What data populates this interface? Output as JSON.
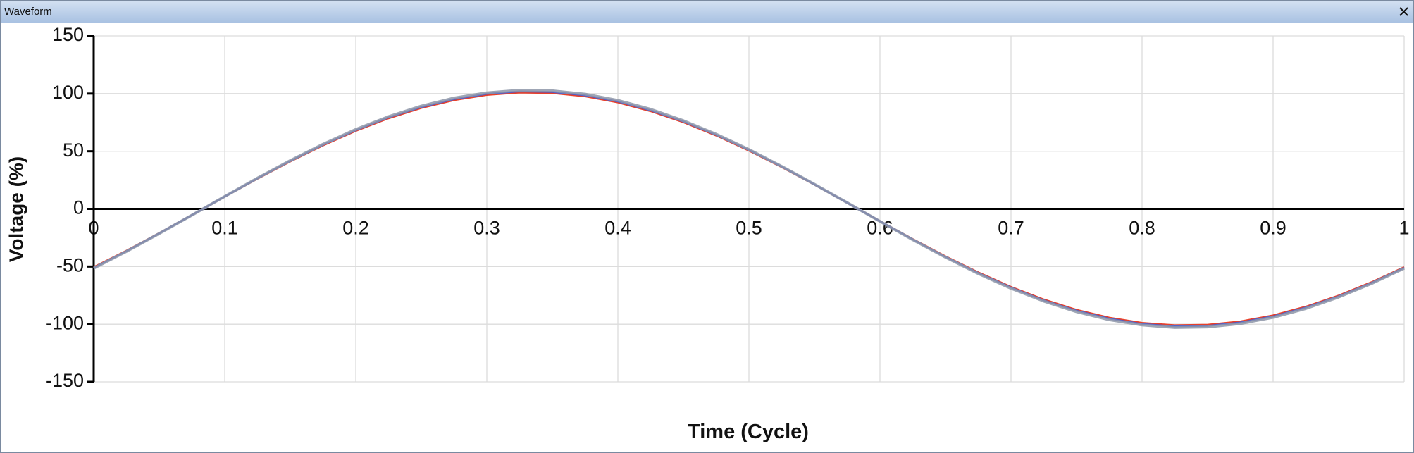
{
  "window": {
    "title": "Waveform"
  },
  "chart_data": {
    "type": "line",
    "xlabel": "Time (Cycle)",
    "ylabel": "Voltage (%)",
    "x": [
      0,
      0.025,
      0.05,
      0.075,
      0.1,
      0.125,
      0.15,
      0.175,
      0.2,
      0.225,
      0.25,
      0.275,
      0.3,
      0.325,
      0.35,
      0.375,
      0.4,
      0.425,
      0.45,
      0.475,
      0.5,
      0.525,
      0.55,
      0.575,
      0.6,
      0.625,
      0.65,
      0.675,
      0.7,
      0.725,
      0.75,
      0.775,
      0.8,
      0.825,
      0.85,
      0.875,
      0.9,
      0.925,
      0.95,
      0.975,
      1
    ],
    "series": [
      {
        "color": "#e8402a",
        "values": [
          -50.5,
          -36.2,
          -21.0,
          -5.3,
          10.6,
          26.1,
          41.1,
          55.0,
          67.6,
          78.5,
          87.5,
          94.3,
          98.8,
          100.9,
          100.4,
          97.6,
          92.3,
          84.7,
          75.1,
          63.6,
          50.5,
          36.2,
          21.0,
          5.3,
          -10.6,
          -26.1,
          -41.1,
          -55.0,
          -67.6,
          -78.5,
          -87.5,
          -94.3,
          -98.8,
          -100.9,
          -100.4,
          -97.6,
          -92.3,
          -84.7,
          -75.1,
          -63.6,
          -50.5
        ]
      },
      {
        "color": "#4a5bd0",
        "values": [
          -51.0,
          -36.6,
          -21.2,
          -5.3,
          10.7,
          26.4,
          41.5,
          55.5,
          68.2,
          79.3,
          88.3,
          95.2,
          99.8,
          101.9,
          101.4,
          98.5,
          93.2,
          85.5,
          75.8,
          64.2,
          51.0,
          36.6,
          21.2,
          5.3,
          -10.7,
          -26.4,
          -41.5,
          -55.5,
          -68.2,
          -79.3,
          -88.3,
          -95.2,
          -99.8,
          -101.9,
          -101.4,
          -98.5,
          -93.2,
          -85.5,
          -75.8,
          -64.2,
          -51.0
        ]
      },
      {
        "color": "#8e96a8",
        "values": [
          -51.5,
          -36.9,
          -21.4,
          -5.4,
          10.8,
          26.7,
          41.9,
          56.1,
          68.9,
          80.0,
          89.2,
          96.2,
          100.7,
          102.9,
          102.4,
          99.5,
          94.1,
          86.4,
          76.5,
          64.8,
          51.5,
          36.9,
          21.4,
          5.4,
          -10.8,
          -26.7,
          -41.9,
          -56.1,
          -68.9,
          -80.0,
          -89.2,
          -96.2,
          -100.7,
          -102.9,
          -102.4,
          -99.5,
          -94.1,
          -86.4,
          -76.5,
          -64.8,
          -51.5
        ]
      }
    ],
    "xlim": [
      0,
      1
    ],
    "xticks": [
      0,
      0.1,
      0.2,
      0.3,
      0.4,
      0.5,
      0.6,
      0.7,
      0.8,
      0.9,
      1
    ],
    "ylim": [
      -150,
      150
    ],
    "yticks": [
      -150,
      -100,
      -50,
      0,
      50,
      100,
      150
    ],
    "grid": true
  }
}
